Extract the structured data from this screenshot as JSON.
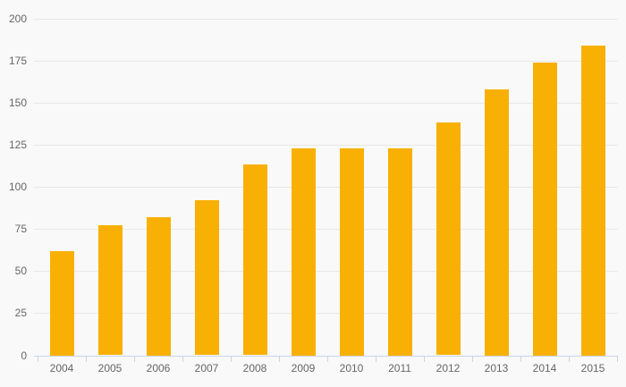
{
  "chart": {
    "background_color": "#F9F9F9",
    "grid_color": "#E8E8E8",
    "axis_color": "#CBD5E8",
    "label_color": "#666666",
    "bar_color": "#F9B005"
  },
  "chart_data": {
    "type": "bar",
    "title": "",
    "xlabel": "",
    "ylabel": "",
    "categories": [
      "2004",
      "2005",
      "2006",
      "2007",
      "2008",
      "2009",
      "2010",
      "2011",
      "2012",
      "2013",
      "2014",
      "2015"
    ],
    "values": [
      62,
      77,
      82,
      92,
      113,
      123,
      123,
      123,
      138,
      158,
      174,
      184
    ],
    "ylim": [
      0,
      200
    ],
    "ytick_interval": 25,
    "yticks": [
      0,
      25,
      50,
      75,
      100,
      125,
      150,
      175,
      200
    ],
    "grid": "horizontal-only",
    "legend": "none"
  }
}
